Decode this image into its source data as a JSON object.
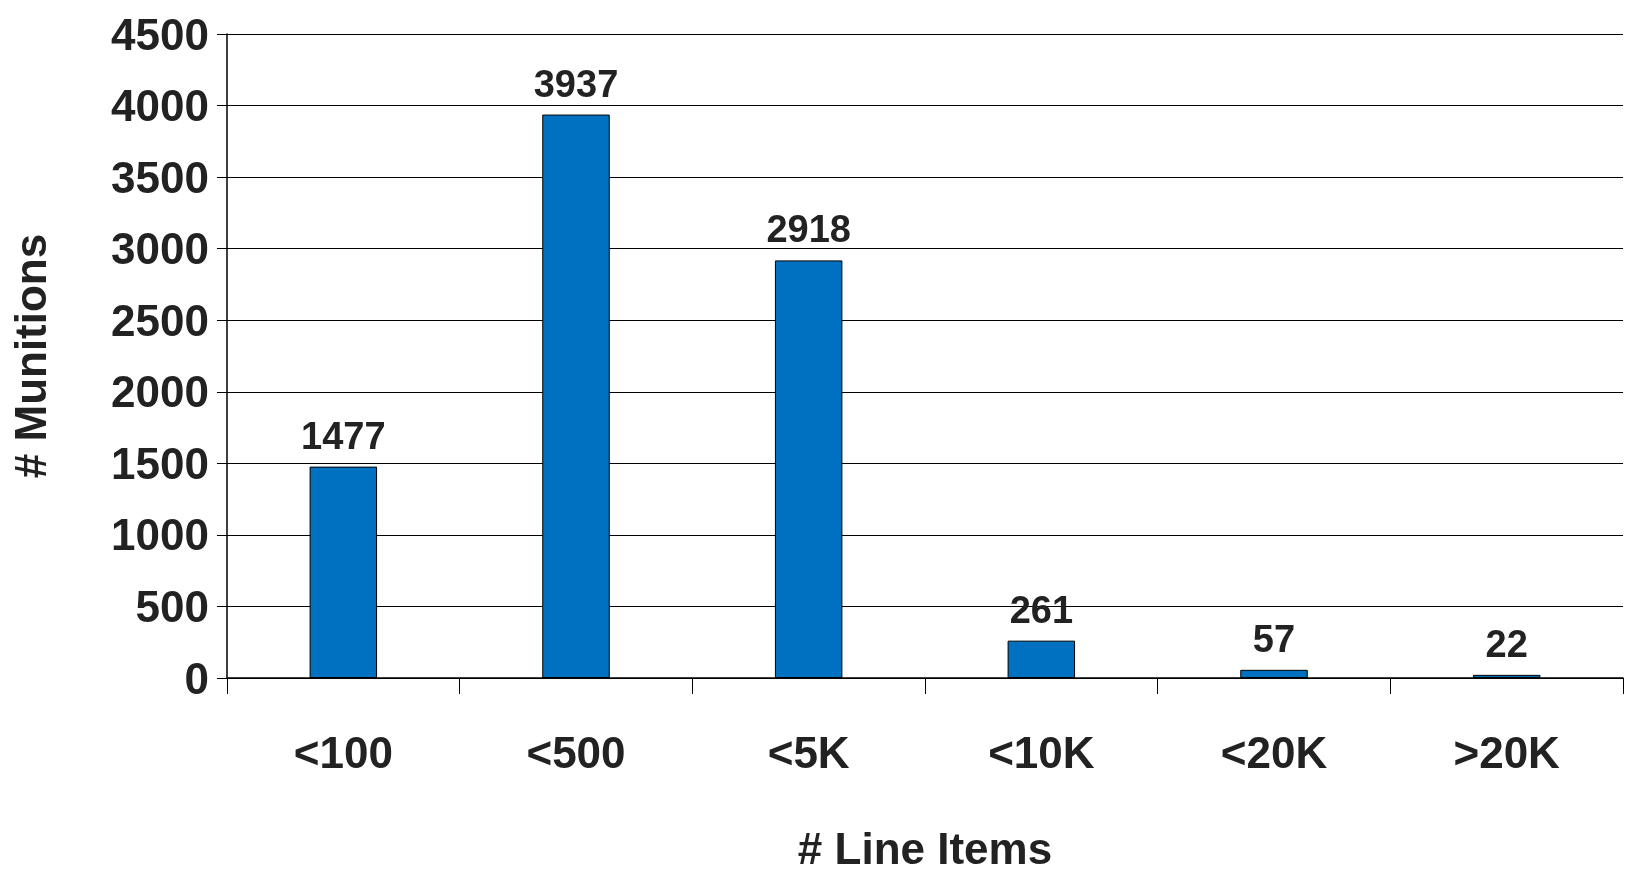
{
  "chart_data": {
    "type": "bar",
    "xlabel": "# Line Items",
    "ylabel": "# Munitions",
    "categories": [
      "<100",
      "<500",
      "<5K",
      "<10K",
      "<20K",
      ">20K"
    ],
    "values": [
      1477,
      3937,
      2918,
      261,
      57,
      22
    ],
    "color": "#0070c0",
    "ylim": [
      0,
      4500
    ],
    "yticks": [
      0,
      500,
      1000,
      1500,
      2000,
      2500,
      3000,
      3500,
      4000,
      4500
    ],
    "grid": "y",
    "data_labels": true
  }
}
